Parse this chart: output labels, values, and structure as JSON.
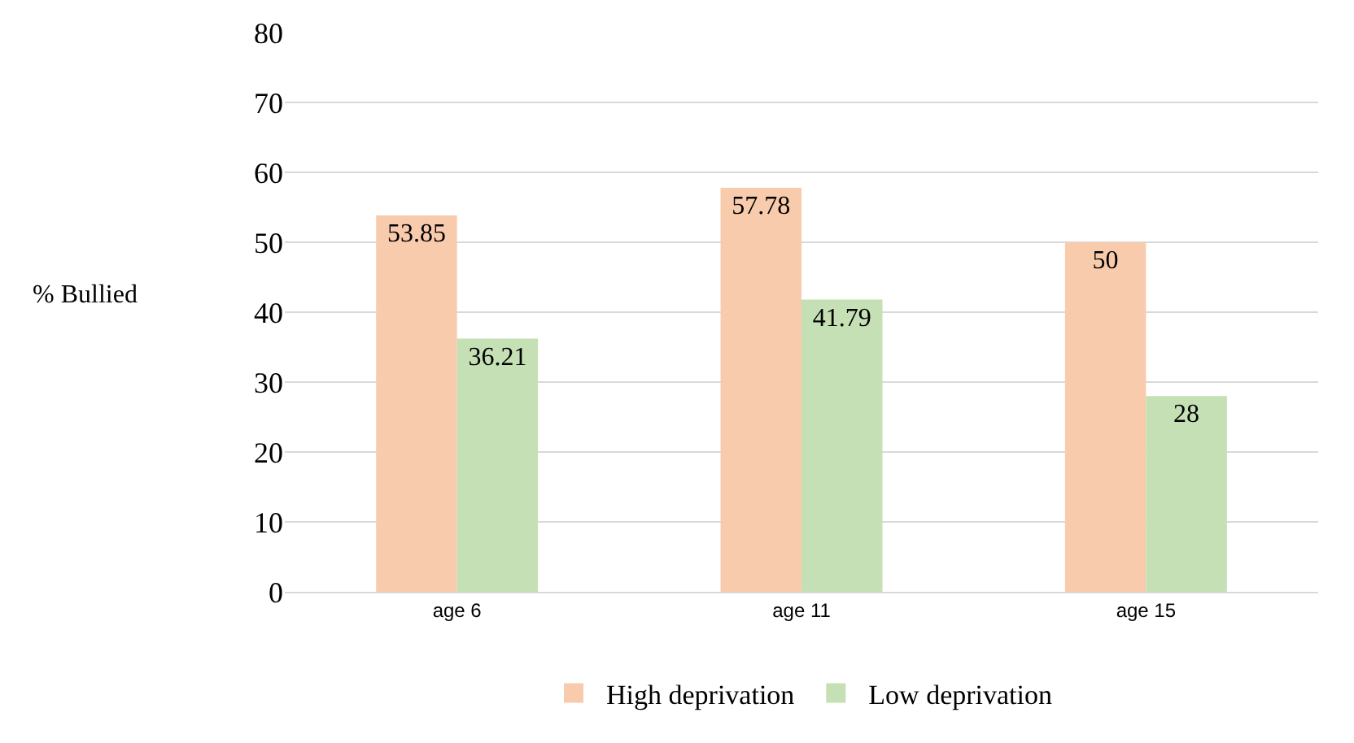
{
  "chart_data": {
    "type": "bar",
    "ylabel": "% Bullied",
    "categories": [
      "age 6",
      "age 11",
      "age 15"
    ],
    "series": [
      {
        "name": "High deprivation",
        "color": "#f8cbad",
        "values": [
          53.85,
          57.78,
          50
        ]
      },
      {
        "name": "Low deprivation",
        "color": "#c5e0b4",
        "values": [
          36.21,
          41.79,
          28
        ]
      }
    ],
    "ylim": [
      0,
      80
    ],
    "yticks": [
      0,
      10,
      20,
      30,
      40,
      50,
      60,
      70,
      80
    ],
    "grid": "y",
    "legend": "bottom",
    "data_labels": true
  }
}
